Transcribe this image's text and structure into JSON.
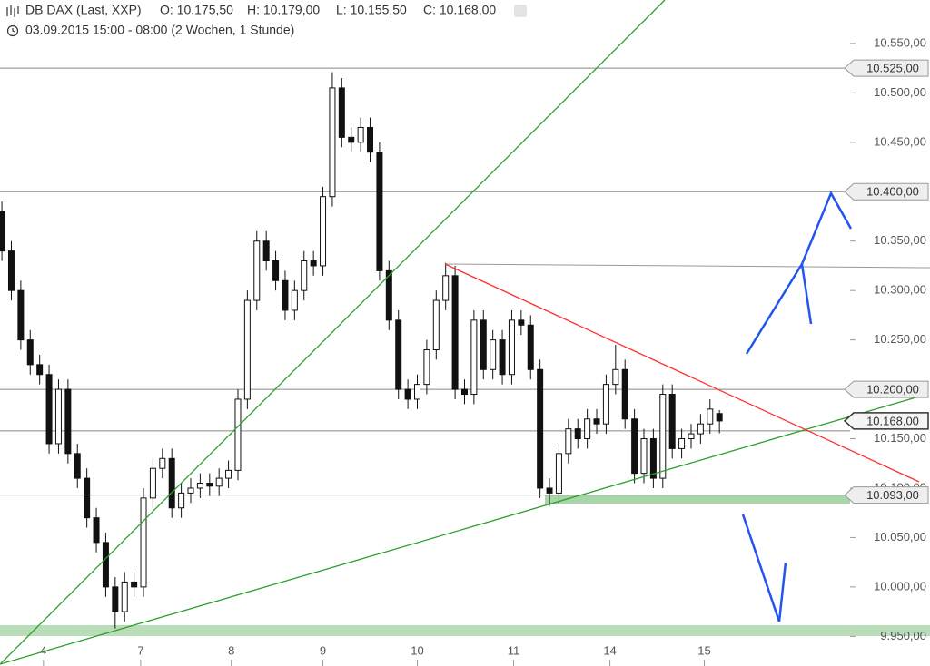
{
  "chart_data": {
    "type": "candlestick",
    "title": "DB DAX (Last, XXP)",
    "ohlc_text": [
      "O: 10.175,50",
      "H: 10.179,00",
      "L: 10.155,50",
      "C: 10.168,00"
    ],
    "subtitle": "03.09.2015 15:00 - 08:00 (2 Wochen, 1 Stunde)",
    "series": [
      {
        "up_color": "#ffffff",
        "down_color": "#111111",
        "open": [
          10380,
          10340,
          10300,
          10250,
          10225,
          10215,
          10145,
          10200,
          10135,
          10110,
          10070,
          10045,
          10000,
          9975,
          10005,
          10000,
          10090,
          10120,
          10130,
          10080,
          10095,
          10100,
          10105,
          10102,
          10110,
          10118,
          10190,
          10290,
          10350,
          10330,
          10310,
          10280,
          10300,
          10330,
          10325,
          10395,
          10505,
          10455,
          10450,
          10465,
          10440,
          10320,
          10270,
          10200,
          10190,
          10205,
          10240,
          10290,
          10315,
          10200,
          10195,
          10270,
          10220,
          10250,
          10215,
          10270,
          10265,
          10220,
          10100,
          10095,
          10135,
          10160,
          10150,
          10170,
          10165,
          10205,
          10220,
          10170,
          10115,
          10150,
          10110,
          10195,
          10140,
          10150,
          10155,
          10165,
          10175.5
        ],
        "high": [
          10390,
          10350,
          10310,
          10260,
          10235,
          10225,
          10210,
          10210,
          10145,
          10120,
          10080,
          10055,
          10010,
          10015,
          10015,
          10100,
          10130,
          10140,
          10140,
          10105,
          10110,
          10115,
          10115,
          10120,
          10128,
          10200,
          10300,
          10360,
          10360,
          10340,
          10320,
          10310,
          10340,
          10340,
          10405,
          10521,
          10515,
          10465,
          10475,
          10475,
          10450,
          10330,
          10280,
          10210,
          10215,
          10250,
          10300,
          10328,
          10325,
          10210,
          10280,
          10280,
          10260,
          10260,
          10280,
          10280,
          10275,
          10230,
          10110,
          10145,
          10170,
          10170,
          10180,
          10180,
          10215,
          10245,
          10230,
          10180,
          10160,
          10160,
          10205,
          10205,
          10160,
          10165,
          10175,
          10190,
          10179
        ],
        "low": [
          10330,
          10290,
          10240,
          10215,
          10205,
          10135,
          10135,
          10125,
          10100,
          10060,
          10035,
          9990,
          9958,
          9965,
          9990,
          9990,
          10080,
          10110,
          10070,
          10070,
          10085,
          10090,
          10092,
          10092,
          10100,
          10108,
          10180,
          10280,
          10320,
          10300,
          10270,
          10270,
          10290,
          10315,
          10315,
          10385,
          10445,
          10440,
          10440,
          10430,
          10310,
          10260,
          10190,
          10180,
          10180,
          10195,
          10230,
          10280,
          10190,
          10185,
          10185,
          10210,
          10210,
          10205,
          10205,
          10255,
          10210,
          10090,
          10082,
          10085,
          10125,
          10140,
          10140,
          10155,
          10155,
          10195,
          10160,
          10105,
          10105,
          10100,
          10100,
          10130,
          10130,
          10140,
          10145,
          10155,
          10155.5
        ],
        "close": [
          10340,
          10300,
          10250,
          10225,
          10215,
          10145,
          10200,
          10135,
          10110,
          10070,
          10045,
          10000,
          9975,
          10005,
          10000,
          10090,
          10120,
          10130,
          10080,
          10095,
          10100,
          10105,
          10102,
          10110,
          10118,
          10190,
          10290,
          10350,
          10330,
          10310,
          10280,
          10300,
          10330,
          10325,
          10395,
          10505,
          10455,
          10450,
          10465,
          10440,
          10320,
          10270,
          10200,
          10190,
          10205,
          10240,
          10290,
          10315,
          10200,
          10195,
          10270,
          10220,
          10250,
          10215,
          10270,
          10265,
          10220,
          10100,
          10095,
          10135,
          10160,
          10150,
          10170,
          10165,
          10205,
          10220,
          10170,
          10115,
          10150,
          10110,
          10195,
          10140,
          10150,
          10155,
          10165,
          10180,
          10168
        ]
      }
    ],
    "xlim": [
      -0.2,
      98.3
    ],
    "xticks": [
      {
        "value": 4.4,
        "label": "4"
      },
      {
        "value": 14.7,
        "label": "7"
      },
      {
        "value": 24.3,
        "label": "8"
      },
      {
        "value": 34,
        "label": "9"
      },
      {
        "value": 44,
        "label": "10"
      },
      {
        "value": 54.2,
        "label": "11"
      },
      {
        "value": 64.4,
        "label": "14"
      },
      {
        "value": 74.4,
        "label": "15"
      }
    ],
    "ylim": [
      9920,
      10594
    ],
    "yticks": [
      {
        "value": 9950,
        "label": "9.950,00"
      },
      {
        "value": 10000,
        "label": "10.000,00"
      },
      {
        "value": 10050,
        "label": "10.050,00"
      },
      {
        "value": 10100,
        "label": "10.100,00"
      },
      {
        "value": 10150,
        "label": "10.150,00"
      },
      {
        "value": 10200,
        "label": "10.200,00"
      },
      {
        "value": 10250,
        "label": "10.250,00"
      },
      {
        "value": 10300,
        "label": "10.300,00"
      },
      {
        "value": 10350,
        "label": "10.350,00"
      },
      {
        "value": 10400,
        "label": "10.400,00"
      },
      {
        "value": 10450,
        "label": "10.450,00"
      },
      {
        "value": 10500,
        "label": "10.500,00"
      },
      {
        "value": 10550,
        "label": "10.550,00"
      }
    ],
    "level_lines": [
      10525,
      10400,
      10200,
      10158,
      10093
    ],
    "price_tags": [
      {
        "value": 10525,
        "label": "10.525,00"
      },
      {
        "value": 10400,
        "label": "10.400,00"
      },
      {
        "value": 10200,
        "label": "10.200,00"
      },
      {
        "value": 10093,
        "label": "10.093,00"
      }
    ],
    "last_price": {
      "value": 10168,
      "label": "10.168,00"
    }
  }
}
